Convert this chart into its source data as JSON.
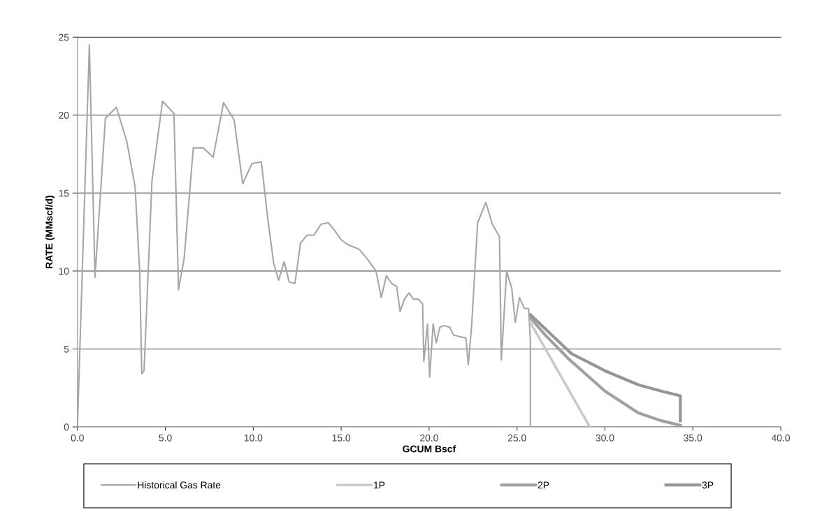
{
  "chart_data": {
    "type": "line",
    "xlabel": "GCUM Bscf",
    "ylabel": "RATE (MMscf/d)",
    "xlim": [
      0,
      40
    ],
    "xticks": [
      {
        "value": 0,
        "label": "0.0"
      },
      {
        "value": 5,
        "label": "5.0"
      },
      {
        "value": 10,
        "label": "10.0"
      },
      {
        "value": 15,
        "label": "15.0"
      },
      {
        "value": 20,
        "label": "20.0"
      },
      {
        "value": 25,
        "label": "25.0"
      },
      {
        "value": 30,
        "label": "30.0"
      },
      {
        "value": 35,
        "label": "35.0"
      },
      {
        "value": 40,
        "label": "40.0"
      }
    ],
    "ylim": [
      0,
      25
    ],
    "yticks": [
      0,
      5,
      10,
      15,
      20,
      25
    ],
    "grid": "y",
    "legend": "bottom",
    "marker": "none",
    "line_style": "solid",
    "series": [
      {
        "name": "Historical Gas Rate",
        "color": "#a6a6a6",
        "x": [
          0,
          0.68,
          1.0,
          1.59,
          2.22,
          2.81,
          3.28,
          3.54,
          3.66,
          3.79,
          4.24,
          4.84,
          5.49,
          5.75,
          6.07,
          6.59,
          7.15,
          7.72,
          8.31,
          8.91,
          9.4,
          9.93,
          10.46,
          10.81,
          11.16,
          11.44,
          11.76,
          12.04,
          12.37,
          12.69,
          13.06,
          13.45,
          13.85,
          14.26,
          14.63,
          15.0,
          15.36,
          16.02,
          16.47,
          16.98,
          17.28,
          17.57,
          17.87,
          18.16,
          18.35,
          18.6,
          18.86,
          19.11,
          19.38,
          19.63,
          19.7,
          19.91,
          20.03,
          20.23,
          20.41,
          20.61,
          20.85,
          21.17,
          21.39,
          21.69,
          22.09,
          22.23,
          22.42,
          22.76,
          23.23,
          23.6,
          24.0,
          24.11,
          24.41,
          24.7,
          24.9,
          25.14,
          25.41,
          25.66,
          25.76,
          25.76
        ],
        "values": [
          0,
          24.5,
          9.6,
          19.8,
          20.5,
          18.3,
          15.4,
          10.0,
          3.4,
          3.6,
          15.8,
          20.9,
          20.1,
          8.8,
          10.8,
          17.9,
          17.9,
          17.3,
          20.8,
          19.7,
          15.6,
          16.9,
          17.0,
          13.5,
          10.5,
          9.4,
          10.6,
          9.3,
          9.2,
          11.8,
          12.3,
          12.3,
          13.0,
          13.1,
          12.6,
          12.0,
          11.7,
          11.4,
          10.8,
          10.0,
          8.3,
          9.7,
          9.2,
          9.0,
          7.4,
          8.2,
          8.6,
          8.2,
          8.2,
          7.9,
          4.2,
          6.6,
          3.2,
          6.6,
          5.4,
          6.4,
          6.5,
          6.4,
          5.9,
          5.8,
          5.7,
          4.0,
          6.5,
          13.1,
          14.4,
          13.0,
          12.2,
          4.3,
          10.0,
          8.9,
          6.7,
          8.3,
          7.6,
          7.6,
          5.5,
          0
        ]
      },
      {
        "name": "1P",
        "color": "#c8c8c8",
        "x": [
          25.76,
          29.14
        ],
        "values": [
          6.7,
          0
        ]
      },
      {
        "name": "2P",
        "color": "#a0a0a0",
        "x": [
          25.76,
          26.6,
          27.9,
          30.0,
          31.9,
          33.2,
          34.29
        ],
        "values": [
          7.0,
          5.9,
          4.4,
          2.3,
          0.9,
          0.4,
          0.1
        ]
      },
      {
        "name": "3P",
        "color": "#959595",
        "x": [
          25.76,
          26.6,
          28.1,
          30.0,
          31.9,
          33.2,
          34.29,
          34.29
        ],
        "values": [
          7.2,
          6.3,
          4.7,
          3.6,
          2.7,
          2.3,
          2.0,
          0.4
        ]
      }
    ]
  }
}
